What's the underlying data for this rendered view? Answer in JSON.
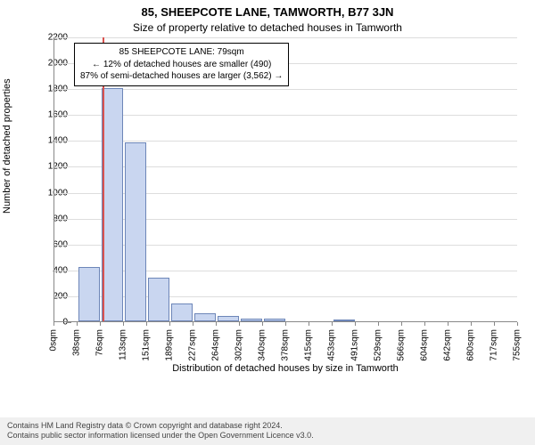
{
  "title": "85, SHEEPCOTE LANE, TAMWORTH, B77 3JN",
  "subtitle": "Size of property relative to detached houses in Tamworth",
  "chart": {
    "type": "histogram",
    "ylabel": "Number of detached properties",
    "xlabel": "Distribution of detached houses by size in Tamworth",
    "ylim": [
      0,
      2200
    ],
    "ytick_step": 200,
    "yticks": [
      0,
      200,
      400,
      600,
      800,
      1000,
      1200,
      1400,
      1600,
      1800,
      2000,
      2200
    ],
    "xtick_labels": [
      "0sqm",
      "38sqm",
      "76sqm",
      "113sqm",
      "151sqm",
      "189sqm",
      "227sqm",
      "264sqm",
      "302sqm",
      "340sqm",
      "378sqm",
      "415sqm",
      "453sqm",
      "491sqm",
      "529sqm",
      "566sqm",
      "604sqm",
      "642sqm",
      "680sqm",
      "717sqm",
      "755sqm"
    ],
    "values": [
      0,
      420,
      1800,
      1380,
      340,
      140,
      65,
      40,
      20,
      20,
      0,
      0,
      10,
      0,
      0,
      0,
      0,
      0,
      0,
      0
    ],
    "bar_color": "#c9d6f0",
    "bar_border_color": "#6d86b8",
    "background_color": "#ffffff",
    "grid_color": "#dddddd",
    "axis_color": "#888888",
    "reference_line": {
      "value_sqm": 79,
      "color": "#d9534f"
    },
    "annotation": {
      "line1": "85 SHEEPCOTE LANE: 79sqm",
      "line2": "← 12% of detached houses are smaller (490)",
      "line3": "87% of semi-detached houses are larger (3,562) →"
    },
    "label_fontsize": 11,
    "tick_fontsize": 10,
    "title_fontsize": 13
  },
  "footer": {
    "line1": "Contains HM Land Registry data © Crown copyright and database right 2024.",
    "line2": "Contains public sector information licensed under the Open Government Licence v3.0."
  }
}
